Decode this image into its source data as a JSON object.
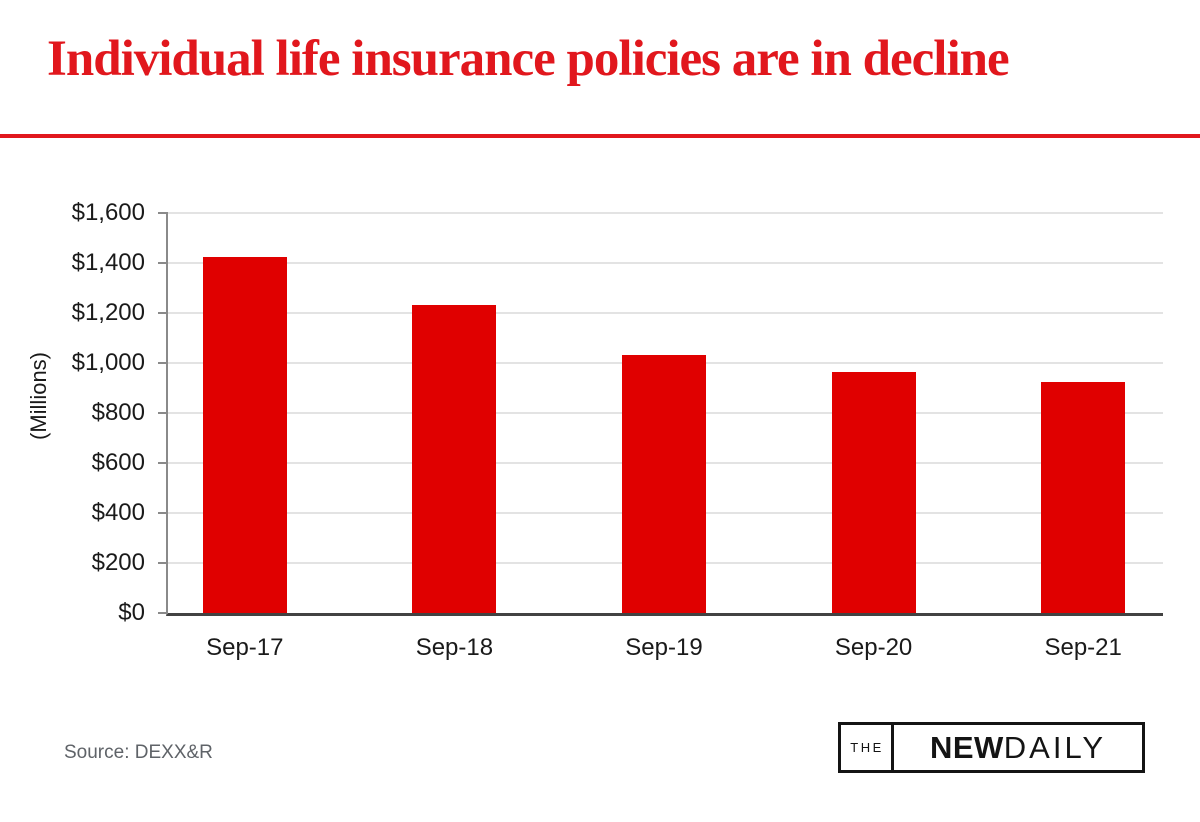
{
  "header": {
    "title": "Individual life insurance policies are in decline"
  },
  "chart_data": {
    "type": "bar",
    "title": "Individual life insurance policies are in decline",
    "categories": [
      "Sep-17",
      "Sep-18",
      "Sep-19",
      "Sep-20",
      "Sep-21"
    ],
    "values": [
      1425,
      1230,
      1030,
      965,
      925
    ],
    "xlabel": "",
    "ylabel": "(Millions)",
    "ylim": [
      0,
      1600
    ],
    "ytick_step": 200,
    "ytick_labels": [
      "$0",
      "$200",
      "$400",
      "$600",
      "$800",
      "$1,000",
      "$1,200",
      "$1,400",
      "$1,600"
    ],
    "grid": true,
    "legend": false,
    "bar_color": "#e00000"
  },
  "footer": {
    "source": "Source: DEXX&R",
    "logo": {
      "the": "THE",
      "new": "NEW",
      "daily": "DAILY"
    }
  },
  "colors": {
    "title_red": "#e1171d",
    "bar_red": "#e00000",
    "axis_dark": "#424242",
    "axis_gray": "#8a8a8a",
    "grid_gray": "#e3e3e3",
    "text_dark": "#1a1a1a",
    "source_gray": "#5f6368",
    "logo_black": "#141414"
  }
}
